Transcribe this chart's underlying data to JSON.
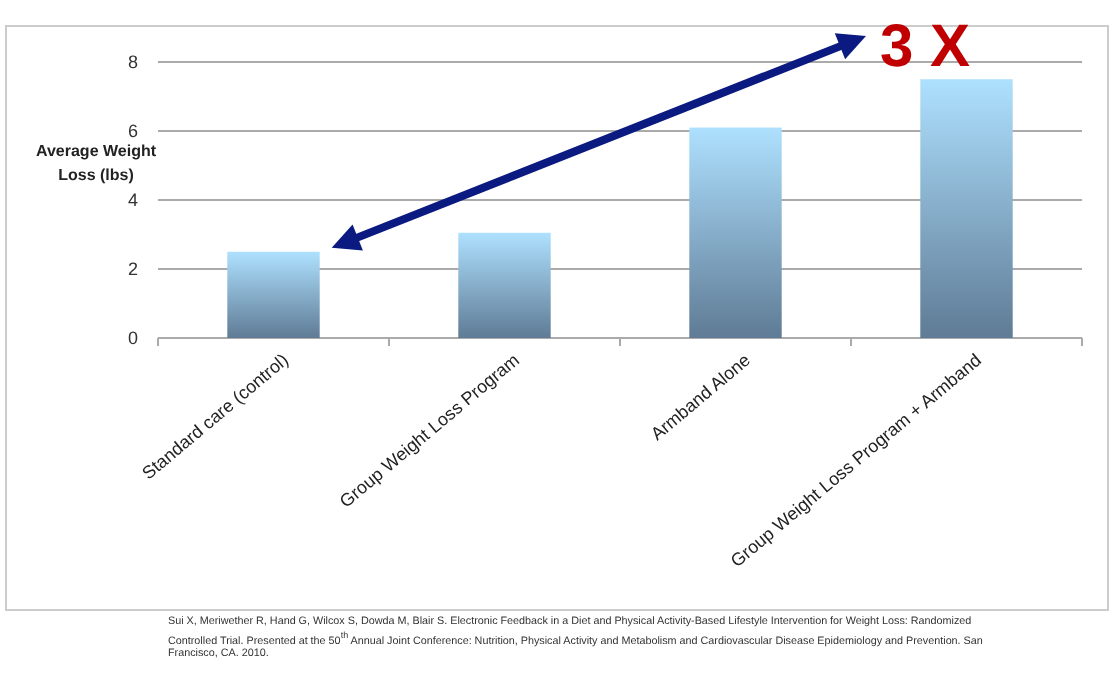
{
  "chart_data": {
    "type": "bar",
    "ylabel": "Average Weight Loss (lbs)",
    "categories": [
      "Standard care (control)",
      "Group Weight Loss Program",
      "Armband Alone",
      "Group Weight Loss Program + Armband"
    ],
    "values": [
      2.5,
      3.05,
      6.1,
      7.5
    ],
    "color": "#7ea3c6",
    "ylim": [
      0,
      8
    ],
    "yticks": [
      0,
      2,
      4,
      6,
      8
    ],
    "grid": "y",
    "annotations": [
      "3 X",
      "Sui X, Meriwether R, Hand G, Wilcox S, Dowda M, Blair S. Electronic Feedback in a Diet and Physical Activity-Based Lifestyle Intervention for Weight Loss: Randomized Controlled Trial. Presented at the 50$^{th}$ Annual Joint Conference: Nutrition, Physical Activity and Metabolism and Cardiovascular Disease Epidemiology and Prevention. San Francisco, CA. 2010."
    ]
  }
}
